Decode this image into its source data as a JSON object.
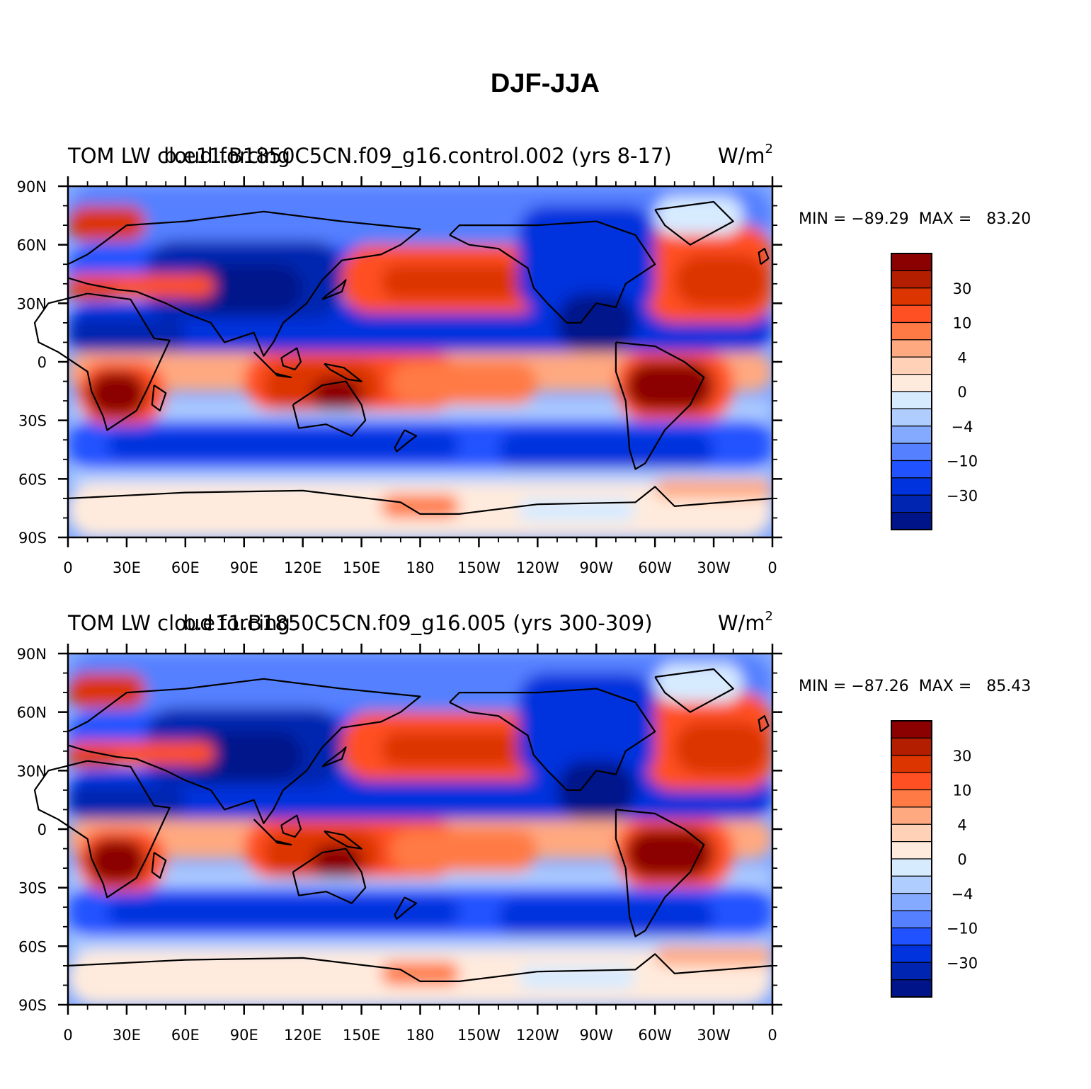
{
  "figure_title": "DJF-JJA",
  "chart_data": [
    {
      "type": "heatmap",
      "left_title": "TOM LW cloud forcing",
      "center_title": "b.e11.B1850C5CN.f09_g16.control.002 (yrs 8-17)",
      "units": "W/m",
      "units_power": "2",
      "minmax": "MIN = −89.29  MAX =   83.20",
      "min": -89.29,
      "max": 83.2,
      "x_ticks": [
        "0",
        "30E",
        "60E",
        "90E",
        "120E",
        "150E",
        "180",
        "150W",
        "120W",
        "90W",
        "60W",
        "30W",
        "0"
      ],
      "y_ticks": [
        "90N",
        "60N",
        "30N",
        "0",
        "30S",
        "60S",
        "90S"
      ],
      "colorbar_labels": [
        "30",
        "10",
        "4",
        "0",
        "−4",
        "−10",
        "−30"
      ]
    },
    {
      "type": "heatmap",
      "left_title": "TOM LW cloud forcing",
      "center_title": "b.e11.B1850C5CN.f09_g16.005 (yrs 300-309)",
      "units": "W/m",
      "units_power": "2",
      "minmax": "MIN = −87.26  MAX =   85.43",
      "min": -87.26,
      "max": 85.43,
      "x_ticks": [
        "0",
        "30E",
        "60E",
        "90E",
        "120E",
        "150E",
        "180",
        "150W",
        "120W",
        "90W",
        "60W",
        "30W",
        "0"
      ],
      "y_ticks": [
        "90N",
        "60N",
        "30N",
        "0",
        "30S",
        "60S",
        "90S"
      ],
      "colorbar_labels": [
        "30",
        "10",
        "4",
        "0",
        "−4",
        "−10",
        "−30"
      ]
    }
  ],
  "colors": {
    "levels": [
      "#8b0000",
      "#b41e00",
      "#dc3500",
      "#ff5024",
      "#ff7a45",
      "#ffa980",
      "#ffd2b8",
      "#ffebdd",
      "#d7ebff",
      "#afcdff",
      "#84aaff",
      "#5580ff",
      "#2052ff",
      "#0033dd",
      "#0025b0",
      "#00148a"
    ],
    "land_outline": "#000000"
  }
}
